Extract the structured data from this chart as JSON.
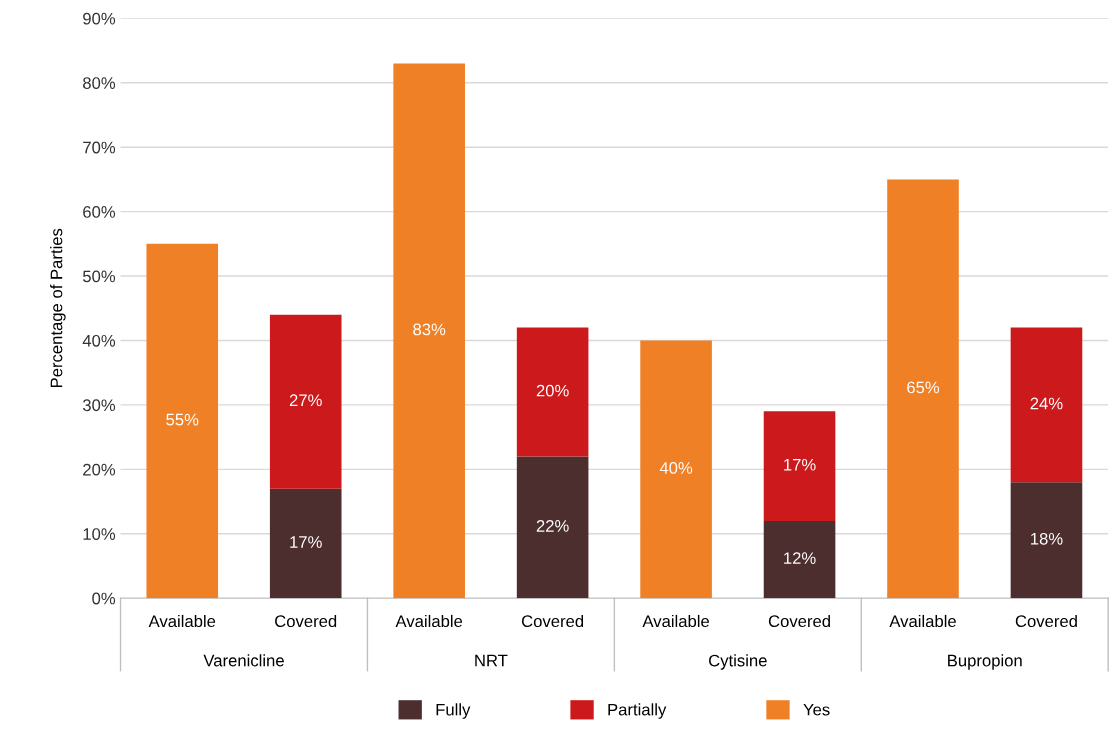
{
  "chart_data": {
    "type": "bar",
    "stacked": true,
    "categories": [
      "Available",
      "Covered",
      "Available",
      "Covered",
      "Available",
      "Covered",
      "Available",
      "Covered"
    ],
    "annotations": [
      "Varenicline",
      "NRT",
      "Cytisine",
      "Bupropion"
    ],
    "series": [
      {
        "name": "Fully",
        "color": "#4d2e2f",
        "values": [
          null,
          17,
          null,
          22,
          null,
          12,
          null,
          18
        ],
        "value_labels": [
          null,
          "17%",
          null,
          "22%",
          null,
          "12%",
          null,
          "18%"
        ]
      },
      {
        "name": "Partially",
        "color": "#cc1a1c",
        "values": [
          null,
          27,
          null,
          20,
          null,
          17,
          null,
          24
        ],
        "value_labels": [
          null,
          "27%",
          null,
          "20%",
          null,
          "17%",
          null,
          "24%"
        ]
      },
      {
        "name": "Yes",
        "color": "#f08025",
        "values": [
          55,
          null,
          83,
          null,
          40,
          null,
          65,
          null
        ],
        "value_labels": [
          "55%",
          null,
          "83%",
          null,
          "40%",
          null,
          "65%",
          null
        ]
      }
    ],
    "ylabel": "Percentage of Parties",
    "ylim": [
      0,
      90
    ],
    "yticks": [
      {
        "value": 0,
        "label": "0%"
      },
      {
        "value": 10,
        "label": "10%"
      },
      {
        "value": 20,
        "label": "20%"
      },
      {
        "value": 30,
        "label": "30%"
      },
      {
        "value": 40,
        "label": "40%"
      },
      {
        "value": 50,
        "label": "50%"
      },
      {
        "value": 60,
        "label": "60%"
      },
      {
        "value": 70,
        "label": "70%"
      },
      {
        "value": 80,
        "label": "80%"
      },
      {
        "value": 90,
        "label": "90%"
      }
    ],
    "grid": "y",
    "legend": "bottom"
  }
}
